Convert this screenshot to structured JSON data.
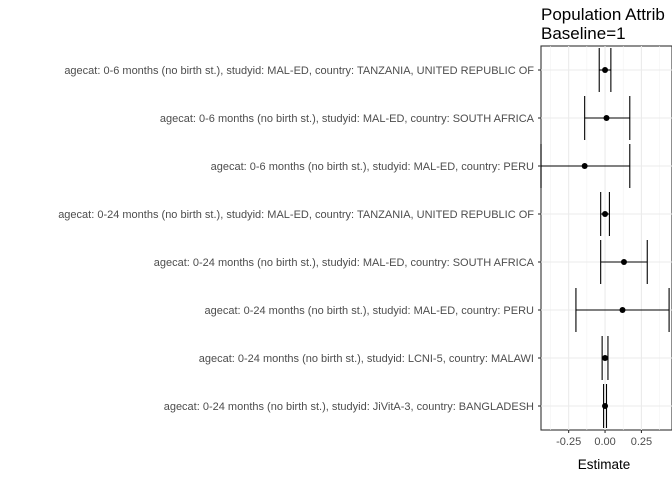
{
  "chart_data": {
    "type": "forest",
    "title_lines": [
      "Population Attrib",
      "Baseline=1"
    ],
    "xlabel": "Estimate",
    "ylabel": "",
    "xlim": [
      -0.44,
      0.46
    ],
    "x_ticks": [
      -0.25,
      0.0,
      0.25
    ],
    "x_tick_labels": [
      "-0.25",
      "0.00",
      "0.25"
    ],
    "grid": true,
    "rows": [
      {
        "label": "agecat: 0-6 months (no birth st.), studyid: MAL-ED, country: TANZANIA, UNITED REPUBLIC OF",
        "estimate": 0.0,
        "lower": -0.04,
        "upper": 0.04
      },
      {
        "label": "agecat: 0-6 months (no birth st.), studyid: MAL-ED, country: SOUTH AFRICA",
        "estimate": 0.01,
        "lower": -0.14,
        "upper": 0.17
      },
      {
        "label": "agecat: 0-6 months (no birth st.), studyid: MAL-ED, country: PERU",
        "estimate": -0.14,
        "lower": -0.44,
        "upper": 0.17
      },
      {
        "label": "agecat: 0-24 months (no birth st.), studyid: MAL-ED, country: TANZANIA, UNITED REPUBLIC OF",
        "estimate": 0.0,
        "lower": -0.03,
        "upper": 0.03
      },
      {
        "label": "agecat: 0-24 months (no birth st.), studyid: MAL-ED, country: SOUTH AFRICA",
        "estimate": 0.13,
        "lower": -0.03,
        "upper": 0.29
      },
      {
        "label": "agecat: 0-24 months (no birth st.), studyid: MAL-ED, country: PERU",
        "estimate": 0.12,
        "lower": -0.2,
        "upper": 0.44
      },
      {
        "label": "agecat: 0-24 months (no birth st.), studyid: LCNI-5, country: MALAWI",
        "estimate": 0.0,
        "lower": -0.02,
        "upper": 0.02
      },
      {
        "label": "agecat: 0-24 months (no birth st.), studyid: JiVitA-3, country: BANGLADESH",
        "estimate": 0.0,
        "lower": -0.01,
        "upper": 0.01
      }
    ]
  }
}
